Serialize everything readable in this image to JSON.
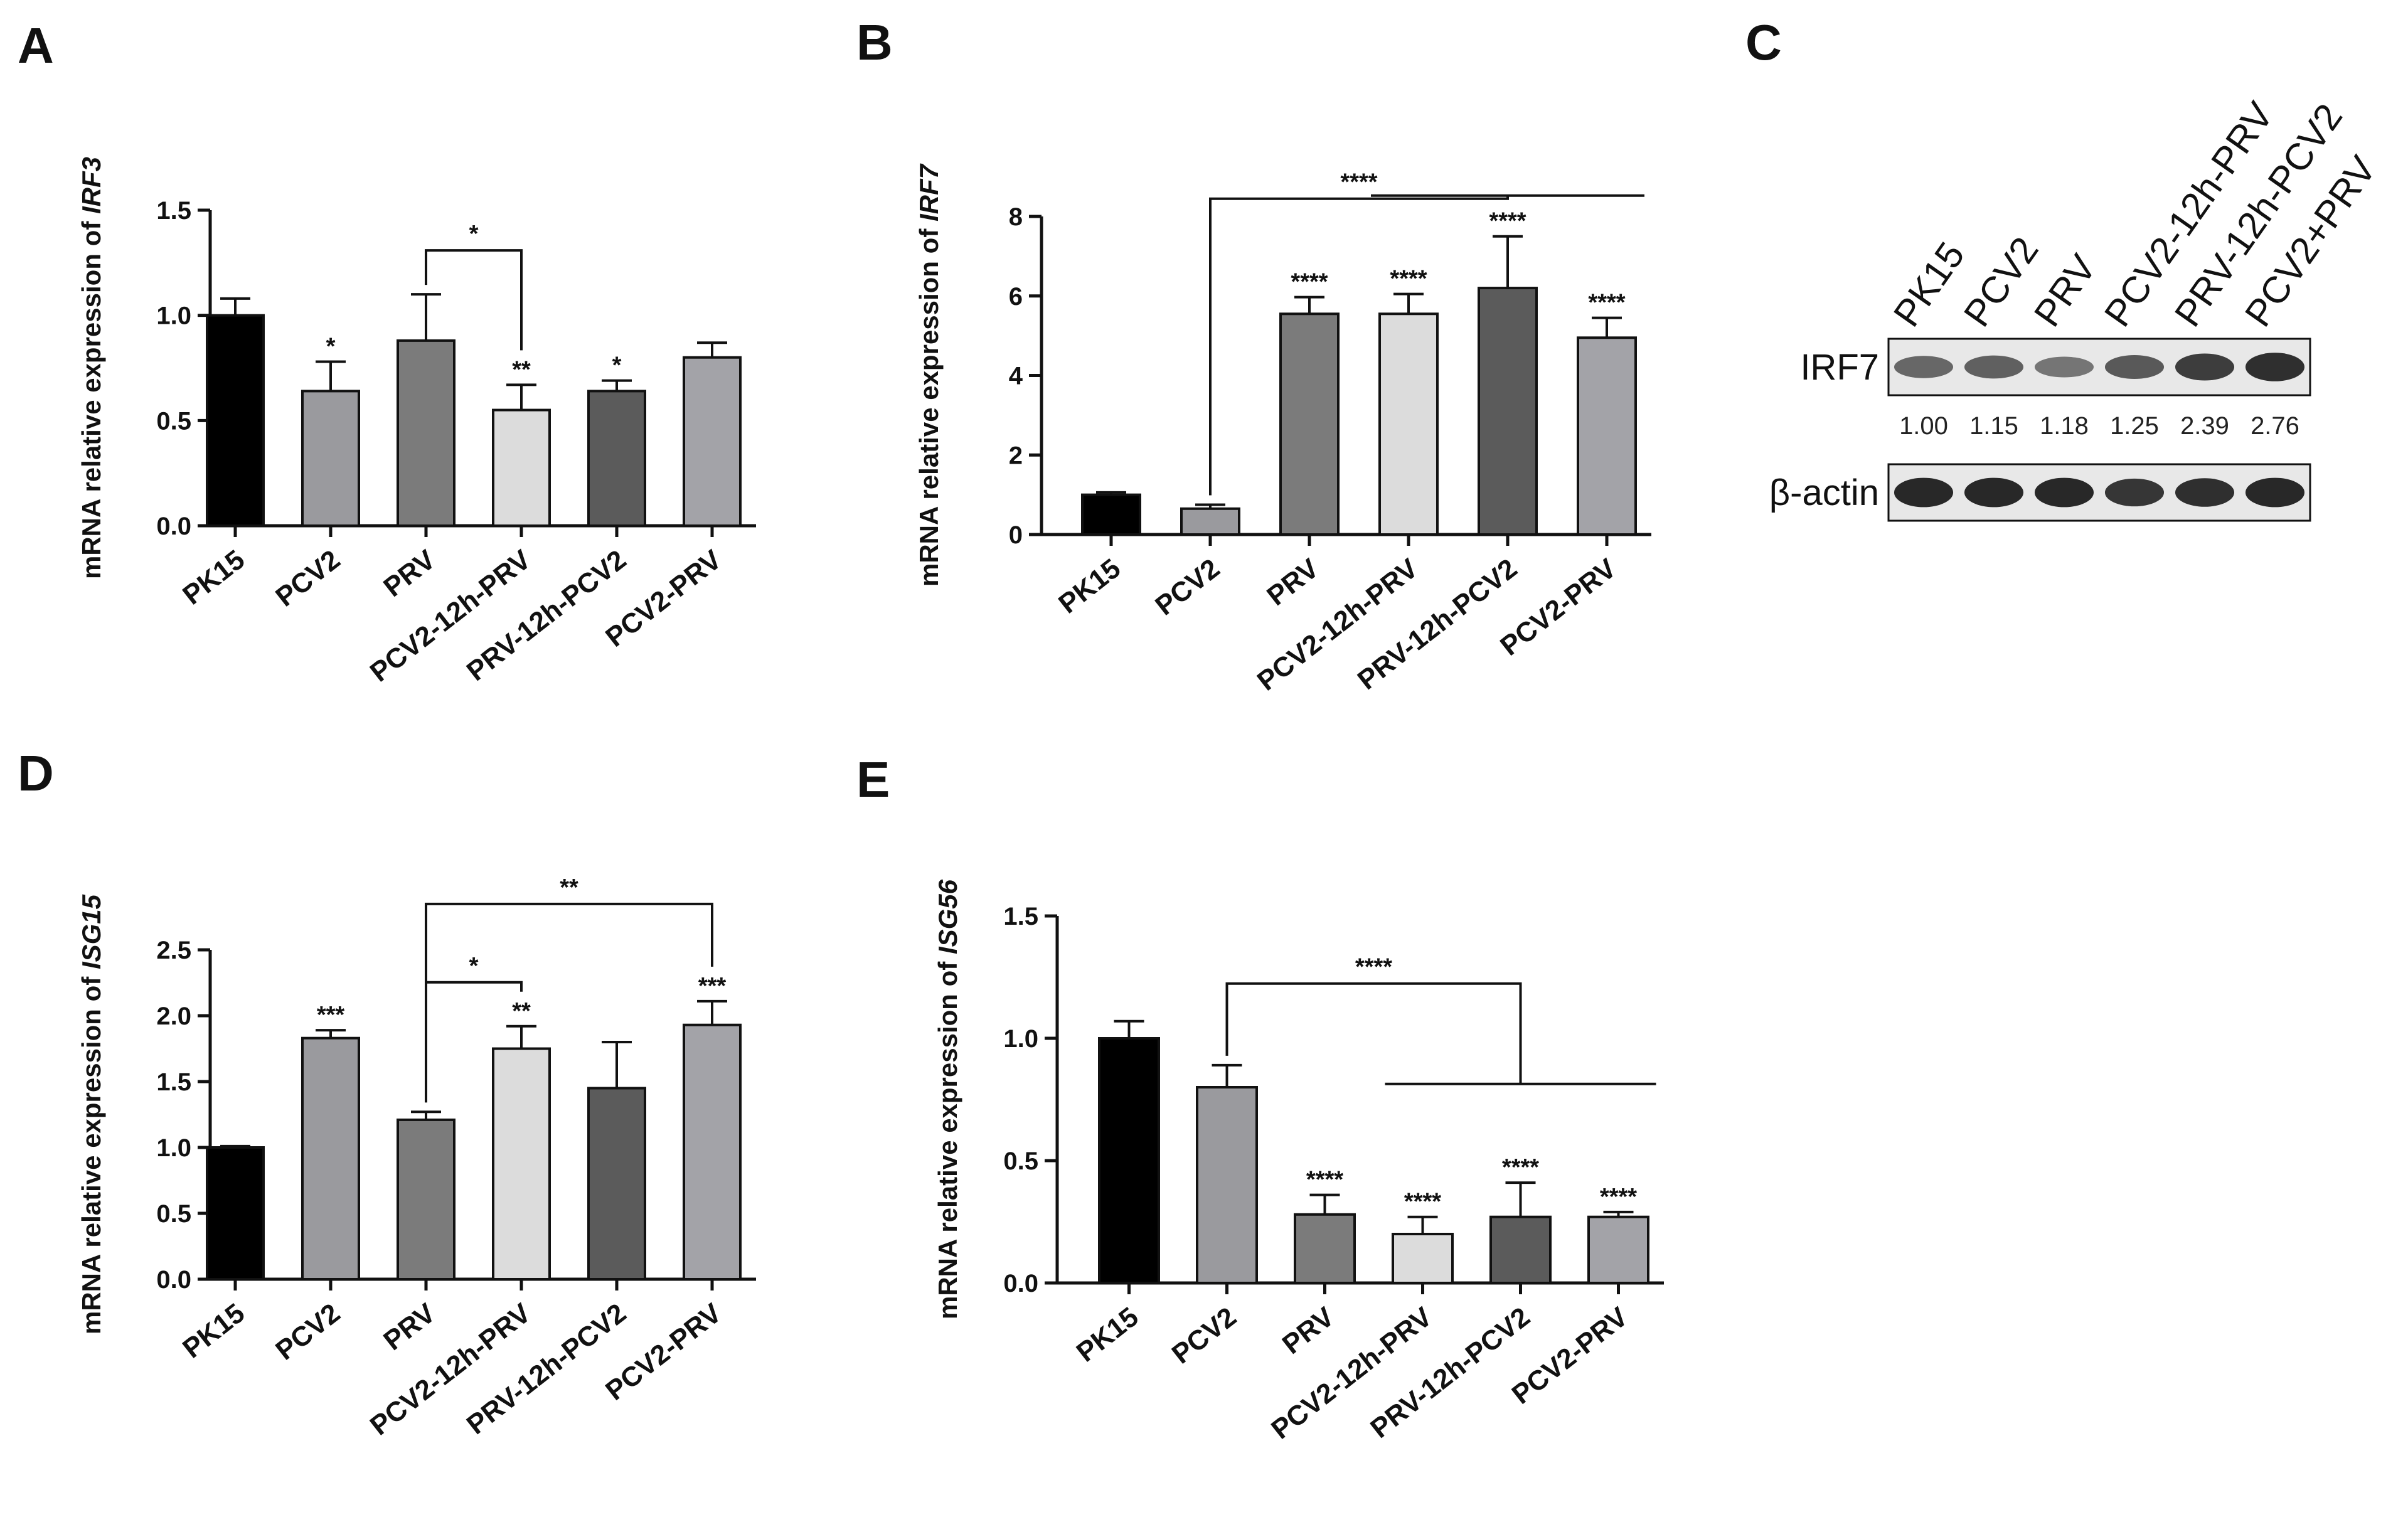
{
  "chart_data": [
    {
      "panel": "A",
      "type": "bar",
      "ylabel_prefix": "mRNA relative expression of ",
      "ylabel_gene": "IRF3",
      "ylim": [
        0,
        1.5
      ],
      "yticks": [
        "0.0",
        "0.5",
        "1.0",
        "1.5"
      ],
      "categories": [
        "PK15",
        "PCV2",
        "PRV",
        "PCV2-12h-PRV",
        "PRV-12h-PCV2",
        "PCV2-PRV"
      ],
      "values": [
        1.0,
        0.64,
        0.88,
        0.55,
        0.64,
        0.8
      ],
      "errors": [
        0.08,
        0.14,
        0.22,
        0.12,
        0.05,
        0.07
      ],
      "colors": [
        "#000000",
        "#9a9a9e",
        "#7b7b7b",
        "#dcdcdc",
        "#5b5b5b",
        "#a3a3a8"
      ],
      "bar_annotations": [
        "",
        "*",
        "",
        "**",
        "*",
        ""
      ],
      "brackets": [
        {
          "from": 2,
          "to": 3,
          "label": "*"
        }
      ]
    },
    {
      "panel": "B",
      "type": "bar",
      "ylabel_prefix": "mRNA relative expression of ",
      "ylabel_gene": "IRF7",
      "ylim": [
        0,
        8
      ],
      "yticks": [
        "0",
        "2",
        "4",
        "6",
        "8"
      ],
      "categories": [
        "PK15",
        "PCV2",
        "PRV",
        "PCV2-12h-PRV",
        "PRV-12h-PCV2",
        "PCV2-PRV"
      ],
      "values": [
        1.0,
        0.65,
        5.55,
        5.55,
        6.2,
        4.95
      ],
      "errors": [
        0.06,
        0.1,
        0.42,
        0.5,
        1.3,
        0.5
      ],
      "colors": [
        "#000000",
        "#9a9a9e",
        "#7b7b7b",
        "#dcdcdc",
        "#5b5b5b",
        "#a3a3a8"
      ],
      "bar_annotations": [
        "",
        "",
        "****",
        "****",
        "****",
        "****"
      ],
      "group_bracket": {
        "from": 1,
        "to_group": [
          3,
          5
        ],
        "label": "****"
      }
    },
    {
      "panel": "D",
      "type": "bar",
      "ylabel_prefix": "mRNA relative expression of ",
      "ylabel_gene": "ISG15",
      "ylim": [
        0,
        2.5
      ],
      "yticks": [
        "0.0",
        "0.5",
        "1.0",
        "1.5",
        "2.0",
        "2.5"
      ],
      "categories": [
        "PK15",
        "PCV2",
        "PRV",
        "PCV2-12h-PRV",
        "PRV-12h-PCV2",
        "PCV2-PRV"
      ],
      "values": [
        1.0,
        1.83,
        1.21,
        1.75,
        1.45,
        1.93
      ],
      "errors": [
        0.01,
        0.06,
        0.06,
        0.17,
        0.35,
        0.18
      ],
      "colors": [
        "#000000",
        "#9a9a9e",
        "#7b7b7b",
        "#dcdcdc",
        "#5b5b5b",
        "#a3a3a8"
      ],
      "bar_annotations": [
        "",
        "***",
        "",
        "**",
        "",
        "***"
      ],
      "brackets": [
        {
          "from": 2,
          "to": 3,
          "label": "*"
        },
        {
          "from": 2,
          "to": 5,
          "label": "**"
        }
      ]
    },
    {
      "panel": "E",
      "type": "bar",
      "ylabel_prefix": "mRNA relative expression of ",
      "ylabel_gene": "ISG56",
      "ylim": [
        0,
        1.5
      ],
      "yticks": [
        "0.0",
        "0.5",
        "1.0",
        "1.5"
      ],
      "categories": [
        "PK15",
        "PCV2",
        "PRV",
        "PCV2-12h-PRV",
        "PRV-12h-PCV2",
        "PCV2-PRV"
      ],
      "values": [
        1.0,
        0.8,
        0.28,
        0.2,
        0.27,
        0.27
      ],
      "errors": [
        0.07,
        0.09,
        0.08,
        0.07,
        0.14,
        0.02
      ],
      "colors": [
        "#000000",
        "#9a9a9e",
        "#7b7b7b",
        "#dcdcdc",
        "#5b5b5b",
        "#a3a3a8"
      ],
      "bar_annotations": [
        "",
        "",
        "****",
        "****",
        "****",
        "****"
      ],
      "group_bracket": {
        "from": 1,
        "to_group": [
          3,
          5
        ],
        "label": "****"
      }
    }
  ],
  "blot": {
    "panel": "C",
    "lanes": [
      "PK15",
      "PCV2",
      "PRV",
      "PCV2-12h-PRV",
      "PRV-12h-PCV2",
      "PCV2+PRV"
    ],
    "rows": [
      {
        "label": "IRF7",
        "intensity": [
          0.55,
          0.6,
          0.45,
          0.65,
          0.85,
          0.95
        ]
      },
      {
        "label": "β-actin",
        "intensity": [
          1,
          1,
          1,
          0.9,
          0.95,
          1
        ]
      }
    ],
    "quantification": [
      "1.00",
      "1.15",
      "1.18",
      "1.25",
      "2.39",
      "2.76"
    ]
  }
}
